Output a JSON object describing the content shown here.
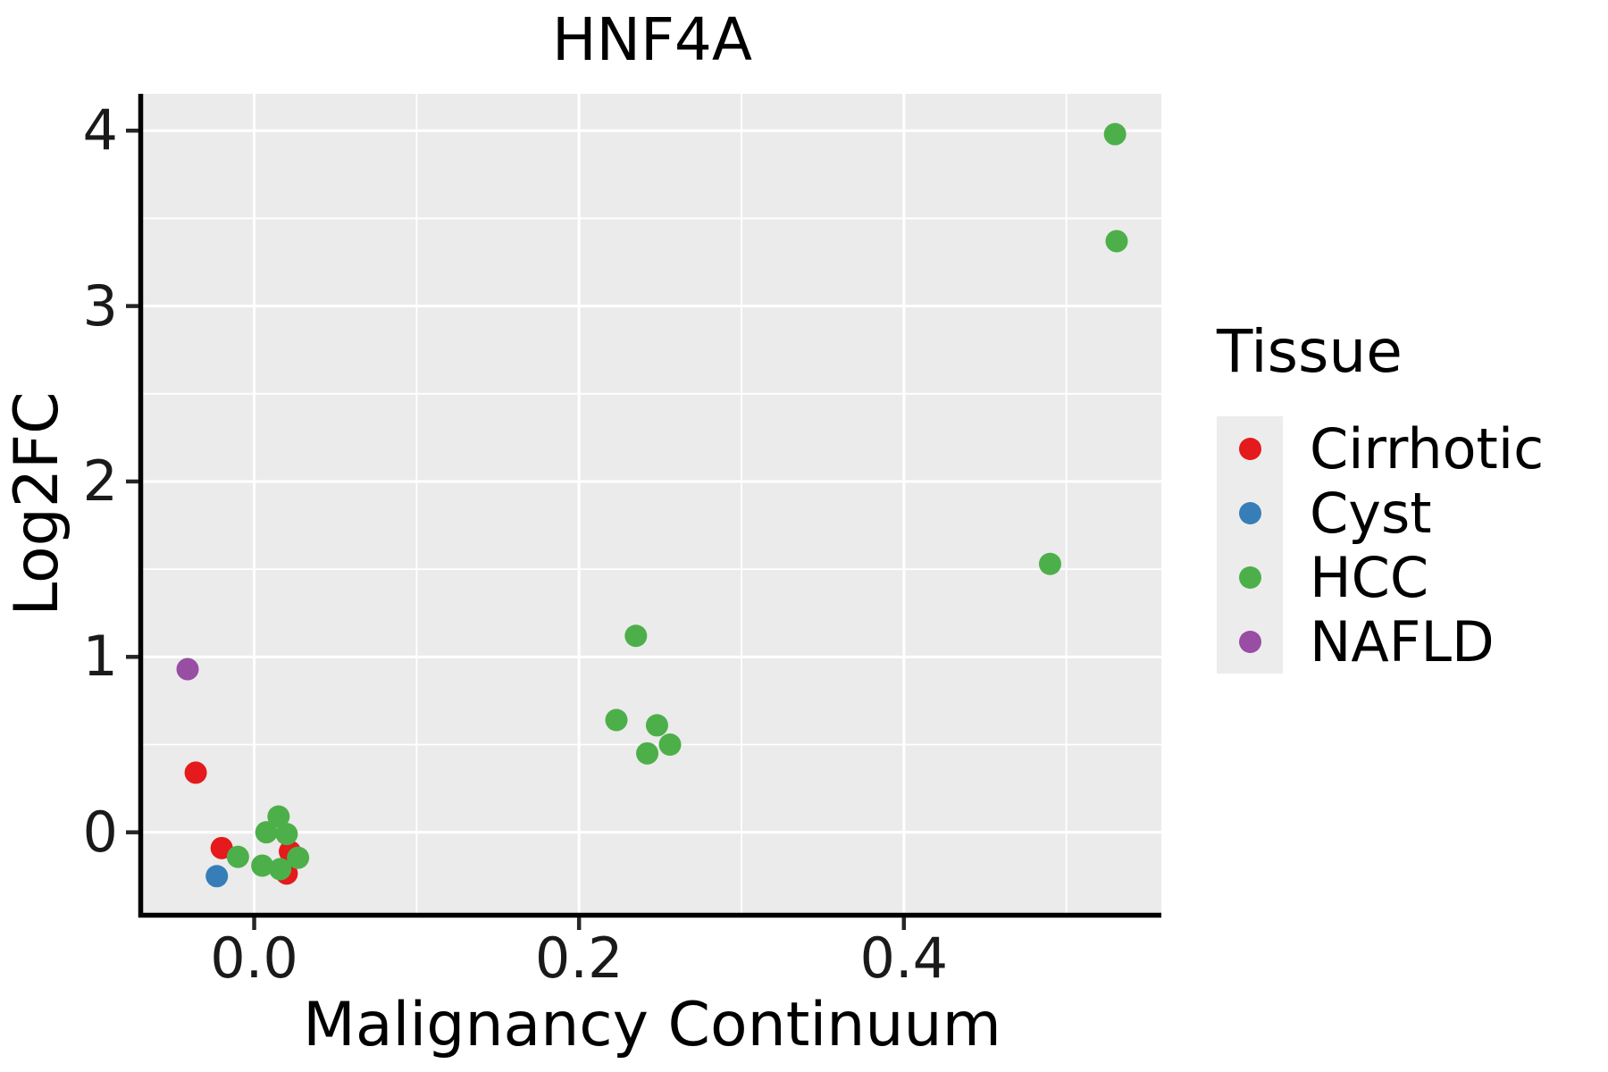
{
  "chart_data": {
    "type": "scatter",
    "title": "HNF4A",
    "xlabel": "Malignancy Continuum",
    "ylabel": "Log2FC",
    "xlim": [
      -0.0685,
      0.5585
    ],
    "ylim": [
      -0.46,
      4.21
    ],
    "x_major_ticks": [
      0.0,
      0.2,
      0.4
    ],
    "x_tick_labels": [
      "0.0",
      "0.2",
      "0.4"
    ],
    "x_minor_gridlines": [
      0.1,
      0.3,
      0.5
    ],
    "y_major_ticks": [
      0,
      1,
      2,
      3,
      4
    ],
    "y_tick_labels": [
      "0",
      "1",
      "2",
      "3",
      "4"
    ],
    "y_minor_gridlines": [
      0.5,
      1.5,
      2.5,
      3.5
    ],
    "grid": true,
    "panel_background": "#EBEBEB",
    "gridline_color": "#FFFFFF",
    "axis_line_color": "#000000",
    "tick_color": "#262626",
    "point_radius_px": 12.5,
    "legend_title": "Tissue",
    "legend_position": "right",
    "series": [
      {
        "name": "Cirrhotic",
        "color": "#E41A1C",
        "points": [
          [
            -0.036,
            0.34
          ],
          [
            -0.02,
            -0.09
          ],
          [
            0.022,
            -0.11
          ],
          [
            0.02,
            -0.235
          ]
        ]
      },
      {
        "name": "Cyst",
        "color": "#377EB8",
        "points": [
          [
            -0.023,
            -0.25
          ]
        ]
      },
      {
        "name": "HCC",
        "color": "#4DAF4A",
        "points": [
          [
            -0.01,
            -0.14
          ],
          [
            0.0075,
            0.0
          ],
          [
            0.015,
            0.09
          ],
          [
            0.02,
            -0.01
          ],
          [
            0.027,
            -0.145
          ],
          [
            0.005,
            -0.19
          ],
          [
            0.016,
            -0.21
          ],
          [
            0.223,
            0.64
          ],
          [
            0.235,
            1.12
          ],
          [
            0.248,
            0.61
          ],
          [
            0.256,
            0.5
          ],
          [
            0.242,
            0.45
          ],
          [
            0.49,
            1.53
          ],
          [
            0.53,
            3.98
          ],
          [
            0.531,
            3.37
          ]
        ]
      },
      {
        "name": "NAFLD",
        "color": "#984EA3",
        "points": [
          [
            -0.041,
            0.93
          ]
        ]
      }
    ]
  }
}
